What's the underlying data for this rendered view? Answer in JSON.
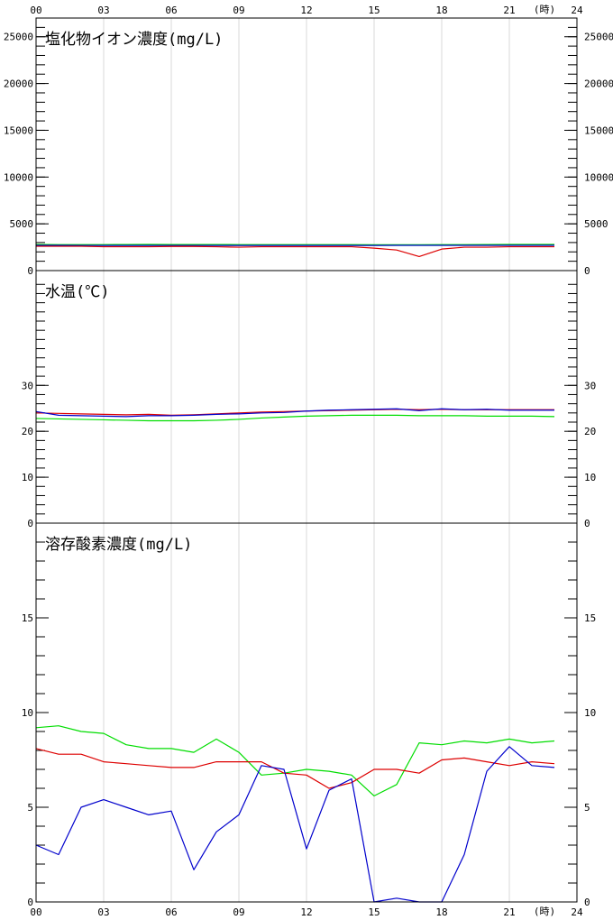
{
  "x_axis": {
    "ticks": [
      "00",
      "03",
      "06",
      "09",
      "12",
      "15",
      "18",
      "21",
      "24"
    ],
    "unit": "(時)"
  },
  "series_colors": {
    "blue": "#0000cc",
    "red": "#dd0000",
    "green": "#00dd00"
  },
  "chart_data": [
    {
      "type": "line",
      "title": "塩化物イオン濃度(mg/L)",
      "ylim": [
        0,
        27000
      ],
      "ytick_labels": [
        "0",
        "5000",
        "10000",
        "15000",
        "20000",
        "25000"
      ],
      "yticks": [
        0,
        5000,
        10000,
        15000,
        20000,
        25000
      ],
      "x": [
        0,
        1,
        2,
        3,
        4,
        5,
        6,
        7,
        8,
        9,
        10,
        11,
        12,
        13,
        14,
        15,
        16,
        17,
        18,
        19,
        20,
        21,
        22,
        23
      ],
      "series": [
        {
          "color": "green",
          "values": [
            2800,
            2780,
            2780,
            2780,
            2790,
            2800,
            2790,
            2790,
            2790,
            2780,
            2780,
            2780,
            2780,
            2770,
            2770,
            2760,
            2760,
            2760,
            2770,
            2780,
            2790,
            2800,
            2800,
            2800
          ]
        },
        {
          "color": "blue",
          "values": [
            2700,
            2700,
            2690,
            2690,
            2690,
            2690,
            2690,
            2690,
            2690,
            2690,
            2690,
            2690,
            2690,
            2690,
            2690,
            2690,
            2700,
            2700,
            2700,
            2700,
            2700,
            2700,
            2700,
            2700
          ]
        },
        {
          "color": "red",
          "values": [
            2600,
            2600,
            2600,
            2550,
            2550,
            2550,
            2580,
            2580,
            2550,
            2500,
            2550,
            2550,
            2550,
            2550,
            2550,
            2400,
            2200,
            1500,
            2300,
            2500,
            2500,
            2550,
            2550,
            2550
          ]
        }
      ]
    },
    {
      "type": "line",
      "title": "水温(℃)",
      "ylim": [
        0,
        55
      ],
      "ytick_labels": [
        "0",
        "10",
        "20",
        "30"
      ],
      "yticks": [
        0,
        10,
        20,
        30
      ],
      "x": [
        0,
        1,
        2,
        3,
        4,
        5,
        6,
        7,
        8,
        9,
        10,
        11,
        12,
        13,
        14,
        15,
        16,
        17,
        18,
        19,
        20,
        21,
        22,
        23
      ],
      "series": [
        {
          "color": "green",
          "values": [
            22.8,
            22.7,
            22.6,
            22.5,
            22.4,
            22.3,
            22.3,
            22.3,
            22.4,
            22.6,
            22.9,
            23.1,
            23.3,
            23.4,
            23.5,
            23.5,
            23.5,
            23.4,
            23.4,
            23.4,
            23.3,
            23.3,
            23.3,
            23.2
          ]
        },
        {
          "color": "red",
          "values": [
            24.0,
            23.9,
            23.8,
            23.7,
            23.6,
            23.7,
            23.5,
            23.6,
            23.8,
            24.0,
            24.2,
            24.3,
            24.4,
            24.5,
            24.6,
            24.7,
            24.8,
            24.7,
            24.8,
            24.7,
            24.7,
            24.7,
            24.7,
            24.7
          ]
        },
        {
          "color": "blue",
          "values": [
            24.3,
            23.5,
            23.4,
            23.3,
            23.2,
            23.4,
            23.4,
            23.5,
            23.7,
            23.8,
            24.0,
            24.1,
            24.4,
            24.6,
            24.7,
            24.8,
            24.9,
            24.5,
            24.9,
            24.7,
            24.8,
            24.6,
            24.6,
            24.6
          ]
        }
      ]
    },
    {
      "type": "line",
      "title": "溶存酸素濃度(mg/L)",
      "ylim": [
        0,
        20
      ],
      "ytick_labels": [
        "0",
        "5",
        "10",
        "15"
      ],
      "yticks": [
        0,
        5,
        10,
        15
      ],
      "x": [
        0,
        1,
        2,
        3,
        4,
        5,
        6,
        7,
        8,
        9,
        10,
        11,
        12,
        13,
        14,
        15,
        16,
        17,
        18,
        19,
        20,
        21,
        22,
        23
      ],
      "series": [
        {
          "color": "green",
          "values": [
            9.2,
            9.3,
            9.0,
            8.9,
            8.3,
            8.1,
            8.1,
            7.9,
            8.6,
            7.9,
            6.7,
            6.8,
            7.0,
            6.9,
            6.7,
            5.6,
            6.2,
            8.4,
            8.3,
            8.5,
            8.4,
            8.6,
            8.4,
            8.5
          ]
        },
        {
          "color": "red",
          "values": [
            8.1,
            7.8,
            7.8,
            7.4,
            7.3,
            7.2,
            7.1,
            7.1,
            7.4,
            7.4,
            7.4,
            6.8,
            6.7,
            6.0,
            6.3,
            7.0,
            7.0,
            6.8,
            7.5,
            7.6,
            7.4,
            7.2,
            7.4,
            7.3
          ]
        },
        {
          "color": "blue",
          "values": [
            3.0,
            2.5,
            5.0,
            5.4,
            5.0,
            4.6,
            4.8,
            1.7,
            3.7,
            4.6,
            7.2,
            7.0,
            2.8,
            5.9,
            6.5,
            0.0,
            0.2,
            0.0,
            0.0,
            2.5,
            6.9,
            8.2,
            7.2,
            7.1
          ]
        }
      ]
    }
  ]
}
